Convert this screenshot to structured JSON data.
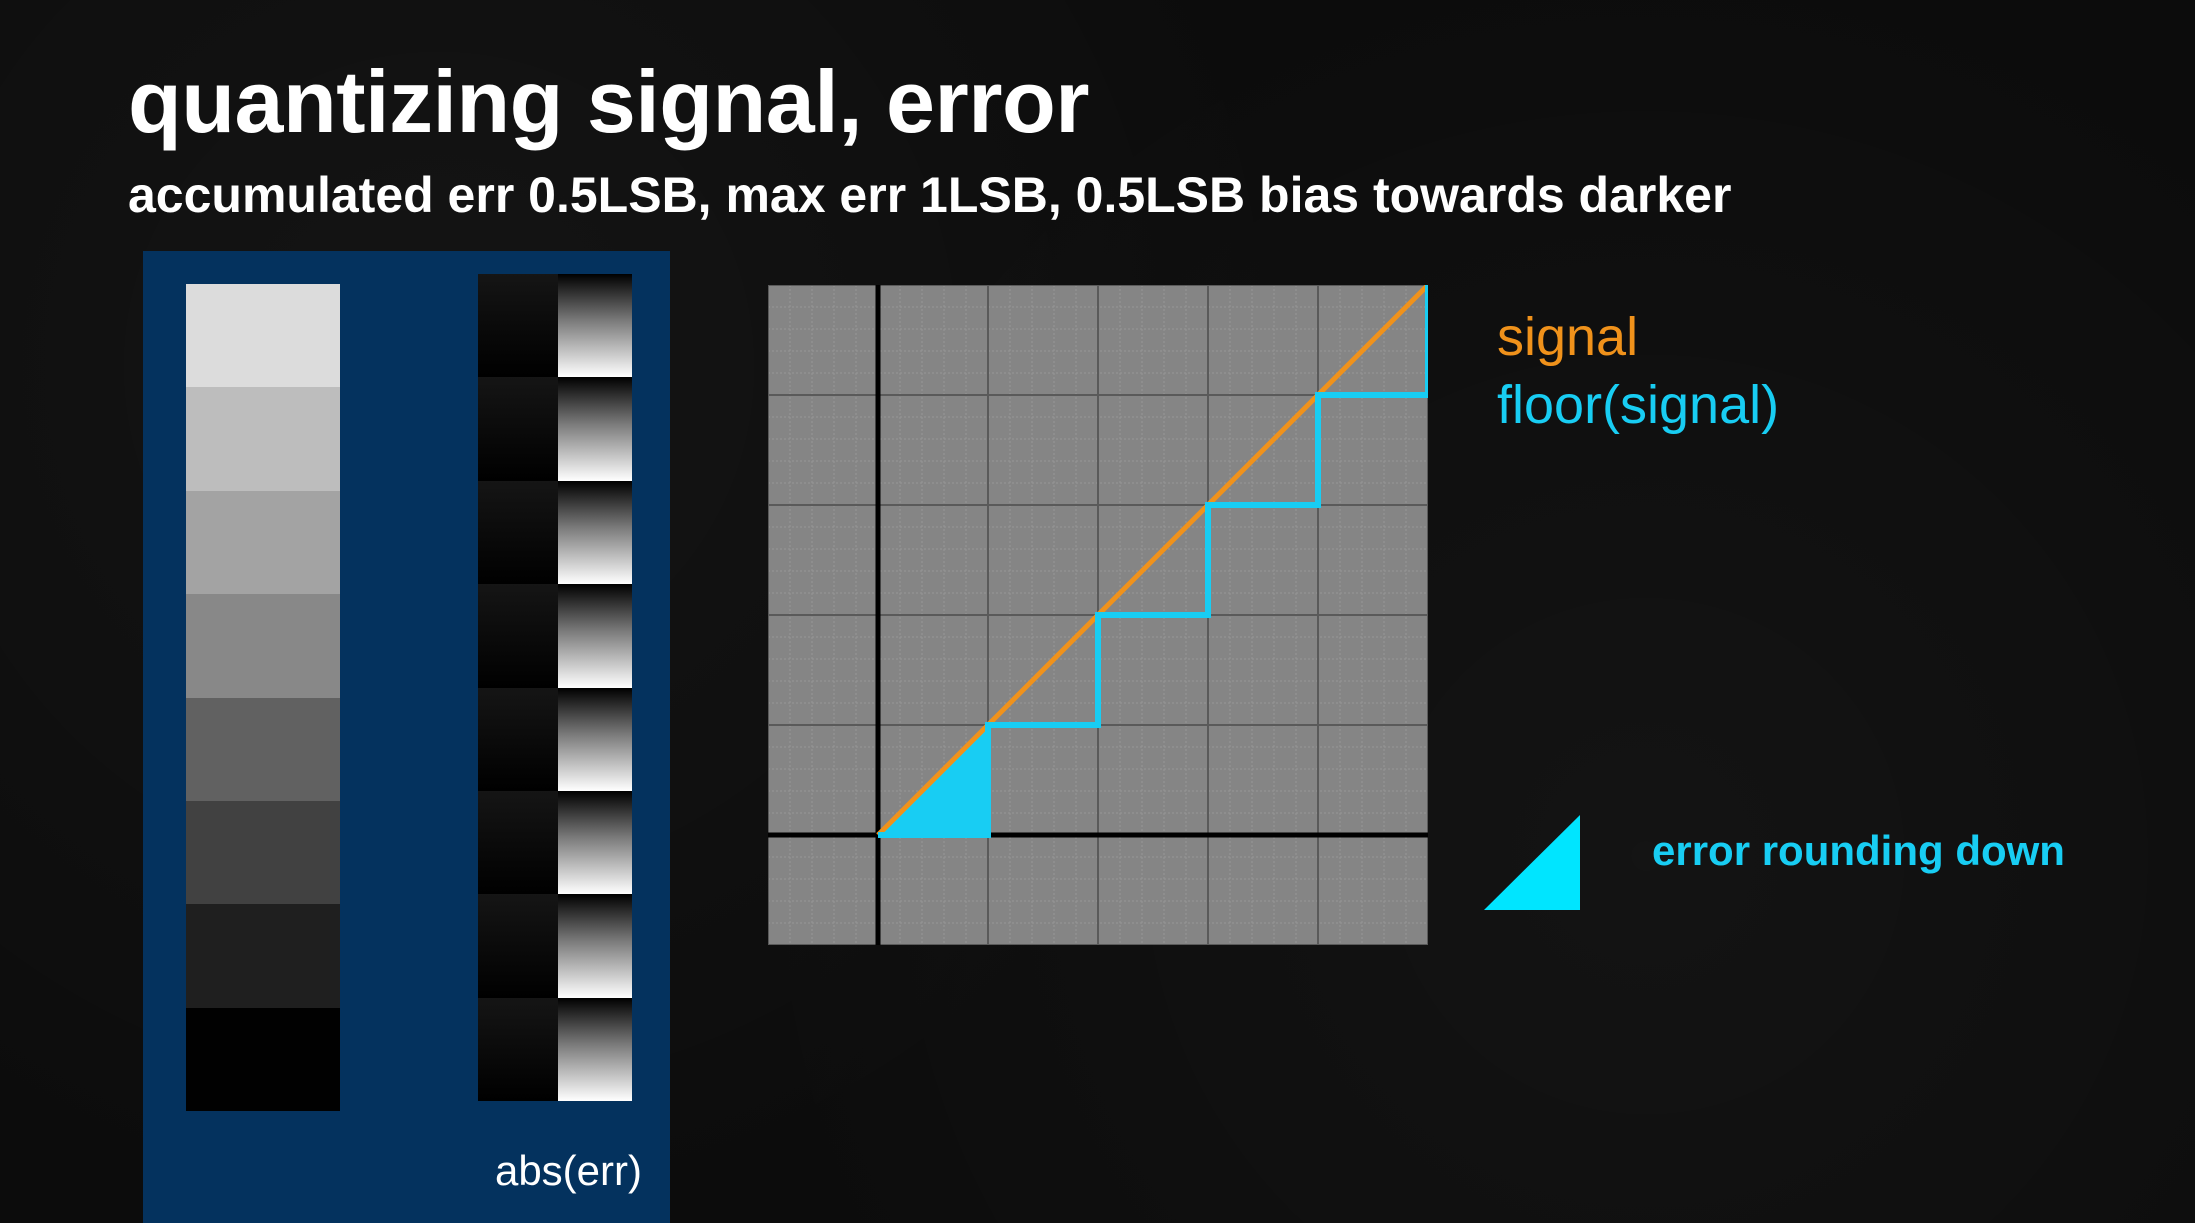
{
  "slide": {
    "title": "quantizing signal, error",
    "subtitle": "accumulated err 0.5LSB, max err 1LSB, 0.5LSB bias towards darker"
  },
  "left_panel": {
    "background_color": "#04325e",
    "ramp_shades": [
      "#dcdcdc",
      "#bdbdbd",
      "#a3a3a3",
      "#888888",
      "#616161",
      "#414141",
      "#1f1f1f",
      "#010101"
    ],
    "error_column_rows": 8,
    "error_label": "abs(err)"
  },
  "chart_data": {
    "type": "line",
    "title": "",
    "xlabel": "",
    "ylabel": "",
    "xlim": [
      -1,
      5
    ],
    "ylim": [
      -1,
      5
    ],
    "grid": true,
    "series": [
      {
        "name": "signal",
        "color": "#f0921b",
        "x": [
          0,
          5
        ],
        "y": [
          0,
          5
        ]
      },
      {
        "name": "floor(signal)",
        "color": "#18cdf3",
        "x": [
          0,
          1,
          1,
          2,
          2,
          3,
          3,
          4,
          4,
          5,
          5
        ],
        "y": [
          0,
          0,
          1,
          1,
          2,
          2,
          3,
          3,
          4,
          4,
          5
        ]
      }
    ],
    "error_region": {
      "color": "#18cdf3",
      "x": [
        0,
        1,
        1
      ],
      "y": [
        0,
        0,
        1
      ]
    }
  },
  "legend": {
    "signal_label": "signal",
    "signal_color": "#f0921b",
    "floor_label": "floor(signal)",
    "floor_color": "#18cdf3"
  },
  "error_note": {
    "caption": "error rounding down",
    "icon": "right-triangle-icon",
    "color": "#00e5ff"
  }
}
